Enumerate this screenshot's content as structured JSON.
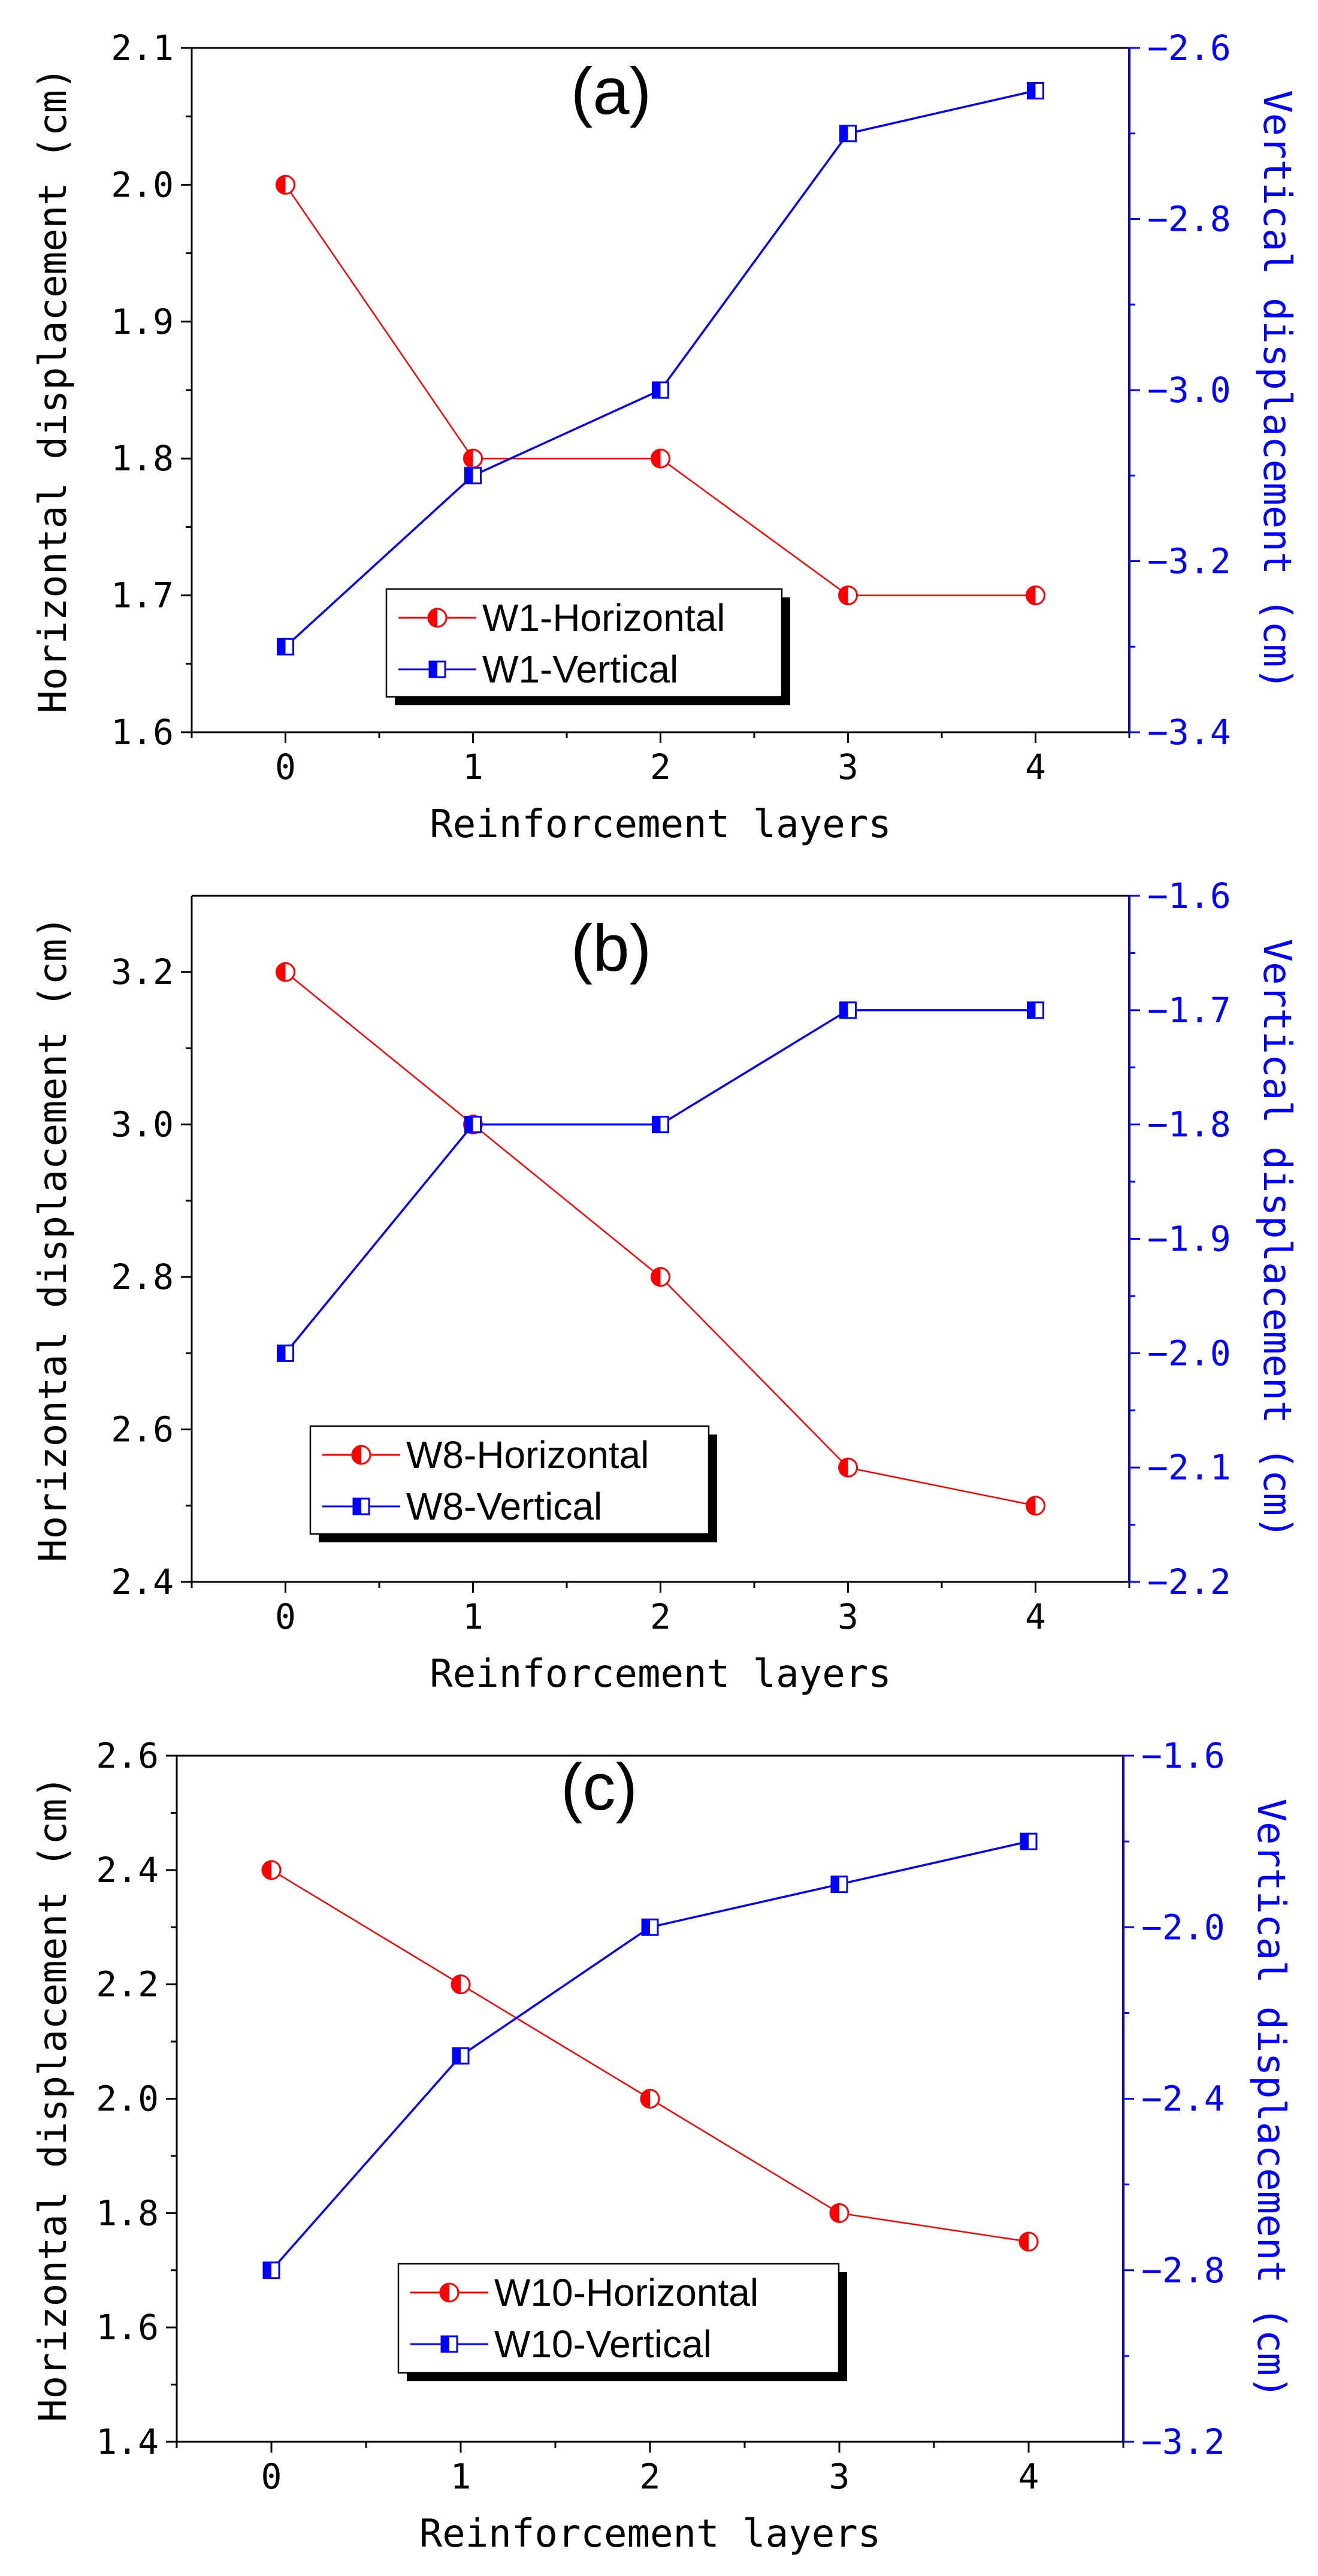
{
  "colors": {
    "horizontal": "#ff0000",
    "vertical": "#0000ff",
    "axis": "#000000"
  },
  "chart_data": [
    {
      "type": "line",
      "title": "(a)",
      "xlabel": "Reinforcement layers",
      "ylabel": "Horizontal displacement (cm)",
      "y2label": "Vertical displacement (cm)",
      "x": [
        0,
        1,
        2,
        3,
        4
      ],
      "x_ticks": [
        "0",
        "1",
        "2",
        "3",
        "4"
      ],
      "xlim": [
        -0.5,
        4.5
      ],
      "ylim": [
        1.6,
        2.1
      ],
      "y_ticks": [
        "1.6",
        "1.7",
        "1.8",
        "1.9",
        "2.0",
        "2.1"
      ],
      "y2lim": [
        -3.4,
        -2.6
      ],
      "y2_ticks": [
        "-3.4",
        "-3.2",
        "-3.0",
        "-2.8",
        "-2.6"
      ],
      "legend_position": "bottom-left",
      "series": [
        {
          "name": "W1-Horizontal",
          "axis": "left",
          "values": [
            2.0,
            1.8,
            1.8,
            1.7,
            1.7
          ]
        },
        {
          "name": "W1-Vertical",
          "axis": "right",
          "values": [
            -3.3,
            -3.1,
            -3.0,
            -2.7,
            -2.65
          ]
        }
      ]
    },
    {
      "type": "line",
      "title": "(b)",
      "xlabel": "Reinforcement layers",
      "ylabel": "Horizontal displacement (cm)",
      "y2label": "Vertical displacement (cm)",
      "x": [
        0,
        1,
        2,
        3,
        4
      ],
      "x_ticks": [
        "0",
        "1",
        "2",
        "3",
        "4"
      ],
      "xlim": [
        -0.5,
        4.5
      ],
      "ylim": [
        2.4,
        3.3
      ],
      "y_ticks": [
        "2.4",
        "2.6",
        "2.8",
        "3.0",
        "3.2"
      ],
      "y2lim": [
        -2.2,
        -1.6
      ],
      "y2_ticks": [
        "-2.2",
        "-2.1",
        "-2.0",
        "-1.9",
        "-1.8",
        "-1.7",
        "-1.6"
      ],
      "legend_position": "bottom-left",
      "series": [
        {
          "name": "W8-Horizontal",
          "axis": "left",
          "values": [
            3.2,
            3.0,
            2.8,
            2.55,
            2.5
          ]
        },
        {
          "name": "W8-Vertical",
          "axis": "right",
          "values": [
            -2.0,
            -1.8,
            -1.8,
            -1.7,
            -1.7
          ]
        }
      ]
    },
    {
      "type": "line",
      "title": "(c)",
      "xlabel": "Reinforcement layers",
      "ylabel": "Horizontal displacement (cm)",
      "y2label": "Vertical displacement (cm)",
      "x": [
        0,
        1,
        2,
        3,
        4
      ],
      "x_ticks": [
        "0",
        "1",
        "2",
        "3",
        "4"
      ],
      "xlim": [
        -0.5,
        4.5
      ],
      "ylim": [
        1.4,
        2.6
      ],
      "y_ticks": [
        "1.4",
        "1.6",
        "1.8",
        "2.0",
        "2.2",
        "2.4",
        "2.6"
      ],
      "y2lim": [
        -3.2,
        -1.6
      ],
      "y2_ticks": [
        "-3.2",
        "-2.8",
        "-2.4",
        "-2.0",
        "-1.6"
      ],
      "legend_position": "bottom-center",
      "series": [
        {
          "name": "W10-Horizontal",
          "axis": "left",
          "values": [
            2.4,
            2.2,
            2.0,
            1.8,
            1.75
          ]
        },
        {
          "name": "W10-Vertical",
          "axis": "right",
          "values": [
            -2.8,
            -2.3,
            -2.0,
            -1.9,
            -1.8
          ]
        }
      ]
    }
  ]
}
